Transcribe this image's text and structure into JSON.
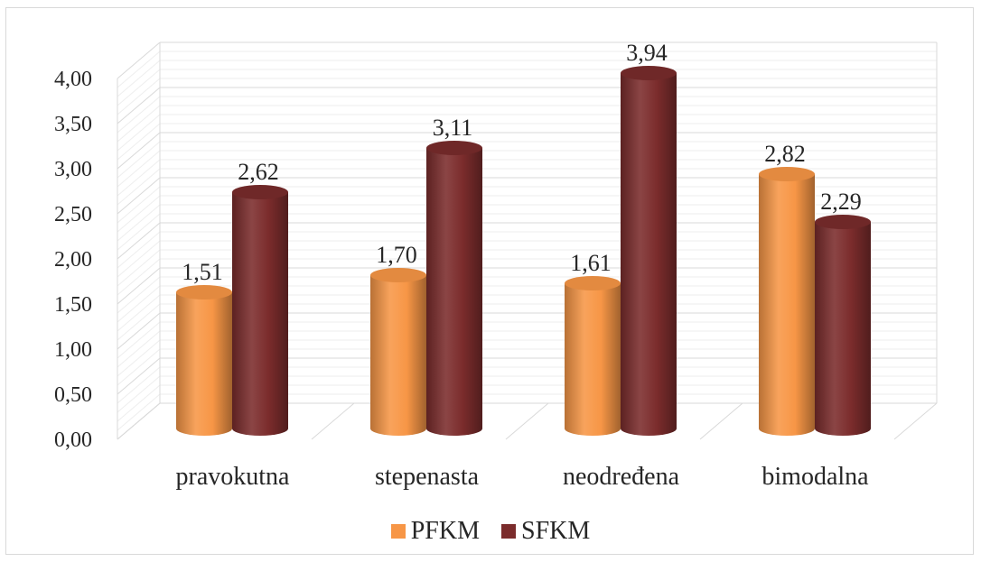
{
  "chart_data": {
    "type": "bar",
    "categories": [
      "pravokutna",
      "stepenasta",
      "neodređena",
      "bimodalna"
    ],
    "series": [
      {
        "name": "PFKM",
        "values": [
          1.51,
          1.7,
          1.61,
          2.82
        ],
        "labels": [
          "1,51",
          "1,70",
          "1,61",
          "2,82"
        ],
        "color": "#f79646"
      },
      {
        "name": "SFKM",
        "values": [
          2.62,
          3.11,
          3.94,
          2.29
        ],
        "labels": [
          "2,62",
          "3,11",
          "3,94",
          "2,29"
        ],
        "color": "#7b2c2c"
      }
    ],
    "ylim": [
      0,
      4
    ],
    "yticks": [
      0,
      0.5,
      1,
      1.5,
      2,
      2.5,
      3,
      3.5,
      4
    ],
    "ytick_labels": [
      "0,00",
      "0,50",
      "1,00",
      "1,50",
      "2,00",
      "2,50",
      "3,00",
      "3,50",
      "4,00"
    ],
    "grid": true,
    "legend": "bottom",
    "style": "3d-cylinder"
  }
}
